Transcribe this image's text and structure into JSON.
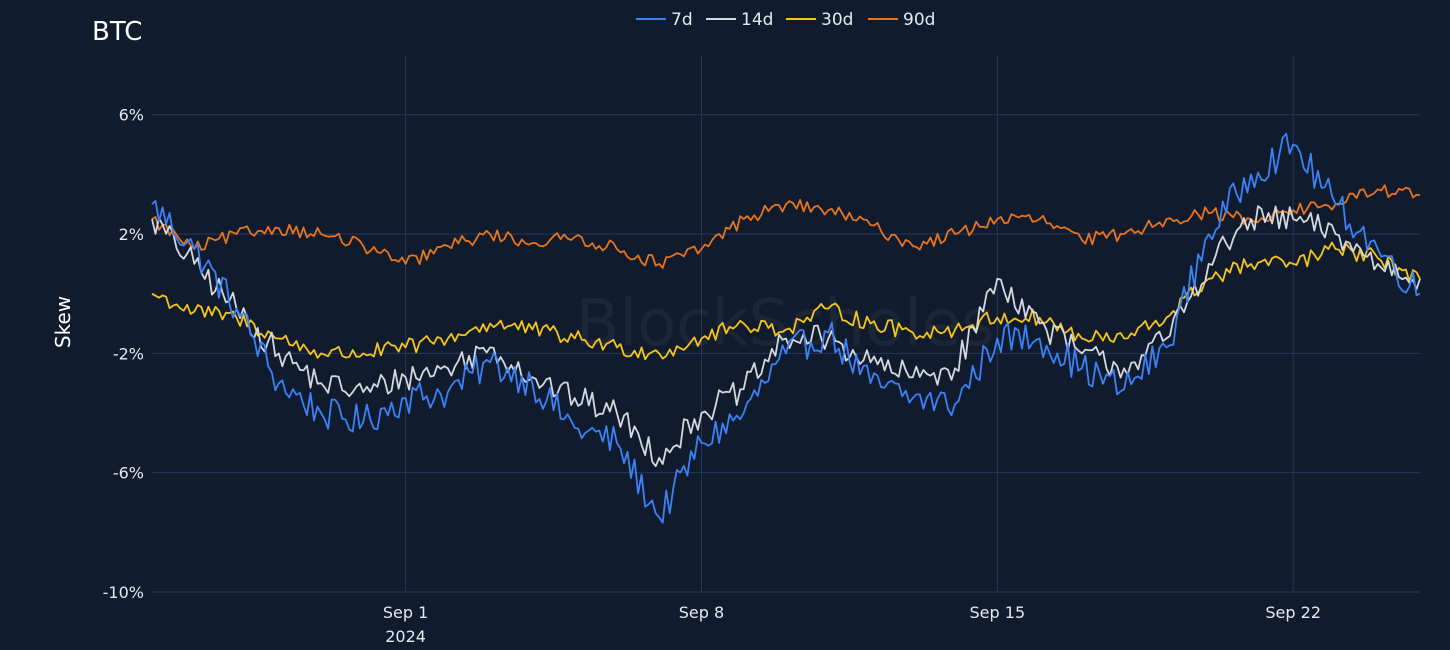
{
  "chart_data": {
    "type": "line",
    "title": "BTC",
    "ylabel": "Skew",
    "xlabel": "",
    "watermark": "BlockScholes",
    "x_range": [
      "2024-08-26T00:00",
      "2024-09-25T00:00"
    ],
    "ylim": [
      -10,
      7.5
    ],
    "y_ticks": [
      {
        "value": 6,
        "label": "6%"
      },
      {
        "value": 2,
        "label": "2%"
      },
      {
        "value": -2,
        "label": "-2%"
      },
      {
        "value": -6,
        "label": "-6%"
      },
      {
        "value": -10,
        "label": "-10%"
      }
    ],
    "x_ticks": [
      {
        "date": "2024-09-01",
        "label": "Sep 1",
        "sublabel": "2024"
      },
      {
        "date": "2024-09-08",
        "label": "Sep 8",
        "sublabel": ""
      },
      {
        "date": "2024-09-15",
        "label": "Sep 15",
        "sublabel": ""
      },
      {
        "date": "2024-09-22",
        "label": "Sep 22",
        "sublabel": ""
      }
    ],
    "grid": true,
    "legend_position": "top-center",
    "series": [
      {
        "name": "7d",
        "color": "#3b82f6",
        "x": [
          "2024-08-26",
          "2024-08-27",
          "2024-08-28",
          "2024-08-29",
          "2024-08-30",
          "2024-08-31",
          "2024-09-01",
          "2024-09-02",
          "2024-09-03",
          "2024-09-04",
          "2024-09-05",
          "2024-09-06",
          "2024-09-07",
          "2024-09-08",
          "2024-09-09",
          "2024-09-10",
          "2024-09-11",
          "2024-09-12",
          "2024-09-13",
          "2024-09-14",
          "2024-09-15",
          "2024-09-16",
          "2024-09-17",
          "2024-09-18",
          "2024-09-19",
          "2024-09-20",
          "2024-09-21",
          "2024-09-22",
          "2024-09-23",
          "2024-09-24",
          "2024-09-25"
        ],
        "values": [
          3.0,
          1.5,
          -0.5,
          -3.0,
          -4.0,
          -4.3,
          -3.5,
          -3.3,
          -2.3,
          -3.0,
          -4.5,
          -5.0,
          -7.5,
          -5.0,
          -4.0,
          -2.0,
          -1.3,
          -3.0,
          -3.5,
          -3.7,
          -1.5,
          -1.5,
          -2.5,
          -3.2,
          -1.8,
          2.0,
          4.0,
          5.0,
          3.0,
          1.5,
          0.0
        ]
      },
      {
        "name": "14d",
        "color": "#d5d9de",
        "x": [
          "2024-08-26",
          "2024-08-27",
          "2024-08-28",
          "2024-08-29",
          "2024-08-30",
          "2024-08-31",
          "2024-09-01",
          "2024-09-02",
          "2024-09-03",
          "2024-09-04",
          "2024-09-05",
          "2024-09-06",
          "2024-09-07",
          "2024-09-08",
          "2024-09-09",
          "2024-09-10",
          "2024-09-11",
          "2024-09-12",
          "2024-09-13",
          "2024-09-14",
          "2024-09-15",
          "2024-09-16",
          "2024-09-17",
          "2024-09-18",
          "2024-09-19",
          "2024-09-20",
          "2024-09-21",
          "2024-09-22",
          "2024-09-23",
          "2024-09-24",
          "2024-09-25"
        ],
        "values": [
          2.5,
          1.0,
          -0.5,
          -2.0,
          -3.0,
          -3.3,
          -2.8,
          -2.5,
          -1.8,
          -2.8,
          -3.5,
          -4.0,
          -5.5,
          -4.0,
          -3.2,
          -1.5,
          -1.5,
          -2.3,
          -2.8,
          -2.5,
          0.5,
          -1.0,
          -2.0,
          -2.5,
          -1.5,
          1.0,
          2.5,
          2.5,
          2.0,
          1.0,
          0.5
        ]
      },
      {
        "name": "30d",
        "color": "#f5c518",
        "x": [
          "2024-08-26",
          "2024-08-27",
          "2024-08-28",
          "2024-08-29",
          "2024-08-30",
          "2024-08-31",
          "2024-09-01",
          "2024-09-02",
          "2024-09-03",
          "2024-09-04",
          "2024-09-05",
          "2024-09-06",
          "2024-09-07",
          "2024-09-08",
          "2024-09-09",
          "2024-09-10",
          "2024-09-11",
          "2024-09-12",
          "2024-09-13",
          "2024-09-14",
          "2024-09-15",
          "2024-09-16",
          "2024-09-17",
          "2024-09-18",
          "2024-09-19",
          "2024-09-20",
          "2024-09-21",
          "2024-09-22",
          "2024-09-23",
          "2024-09-24",
          "2024-09-25"
        ],
        "values": [
          0.0,
          -0.6,
          -0.8,
          -1.5,
          -2.0,
          -2.0,
          -1.8,
          -1.5,
          -1.0,
          -1.2,
          -1.5,
          -1.8,
          -2.0,
          -1.5,
          -1.0,
          -1.2,
          -0.5,
          -1.0,
          -1.3,
          -1.2,
          -0.8,
          -0.8,
          -1.5,
          -1.5,
          -0.8,
          0.5,
          1.0,
          1.0,
          1.5,
          1.2,
          0.5
        ]
      },
      {
        "name": "90d",
        "color": "#e8741c",
        "x": [
          "2024-08-26",
          "2024-08-27",
          "2024-08-28",
          "2024-08-29",
          "2024-08-30",
          "2024-08-31",
          "2024-09-01",
          "2024-09-02",
          "2024-09-03",
          "2024-09-04",
          "2024-09-05",
          "2024-09-06",
          "2024-09-07",
          "2024-09-08",
          "2024-09-09",
          "2024-09-10",
          "2024-09-11",
          "2024-09-12",
          "2024-09-13",
          "2024-09-14",
          "2024-09-15",
          "2024-09-16",
          "2024-09-17",
          "2024-09-18",
          "2024-09-19",
          "2024-09-20",
          "2024-09-21",
          "2024-09-22",
          "2024-09-23",
          "2024-09-24",
          "2024-09-25"
        ],
        "values": [
          2.5,
          1.5,
          2.0,
          2.2,
          2.0,
          1.6,
          1.0,
          1.6,
          2.0,
          1.7,
          1.9,
          1.5,
          1.0,
          1.5,
          2.5,
          3.0,
          2.8,
          2.3,
          1.6,
          2.0,
          2.5,
          2.5,
          1.8,
          2.0,
          2.5,
          2.7,
          2.5,
          2.8,
          3.0,
          3.5,
          3.3
        ]
      }
    ]
  }
}
